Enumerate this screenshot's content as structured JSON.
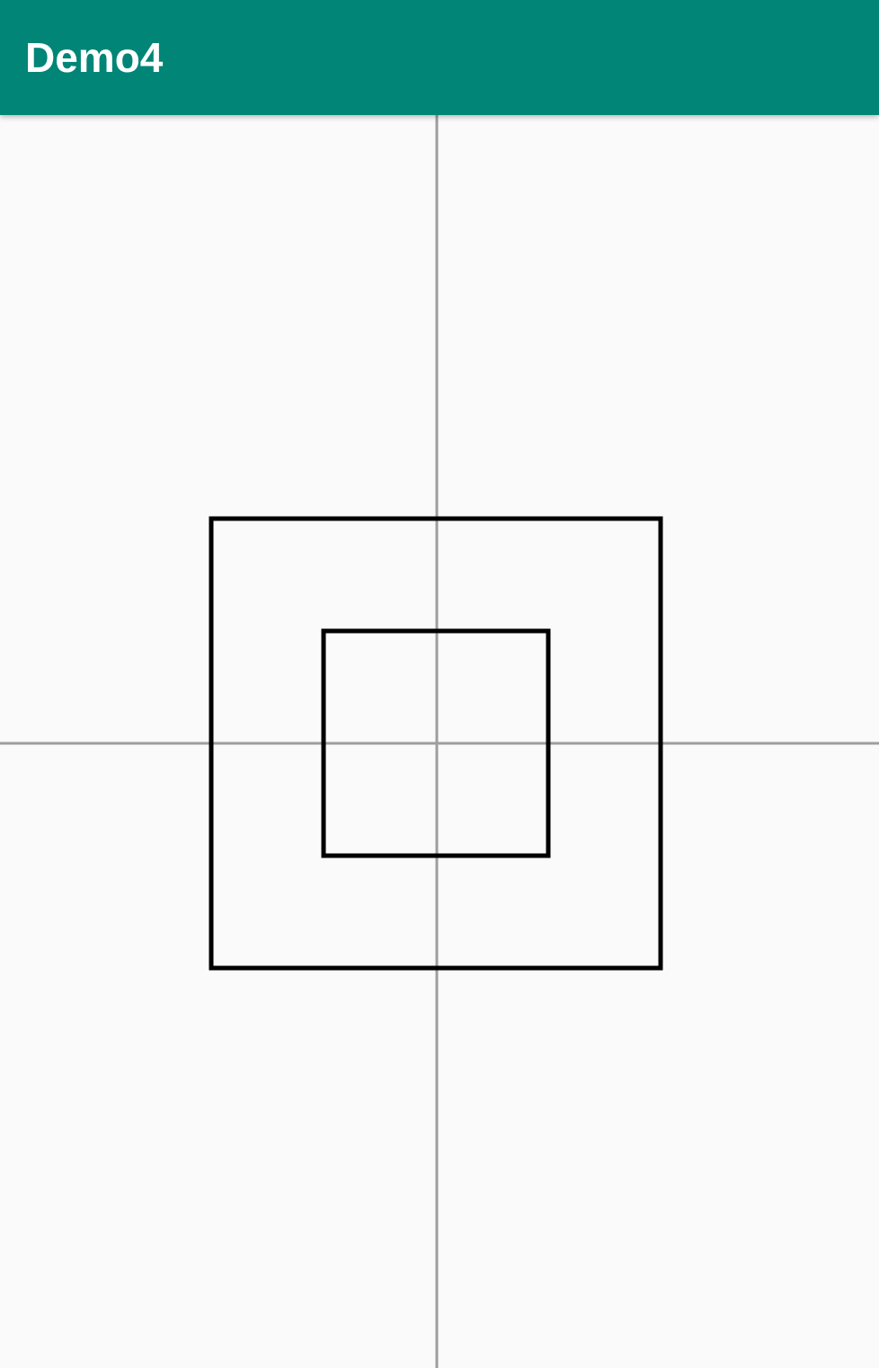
{
  "app_bar": {
    "title": "Demo4",
    "background_color": "#008577"
  },
  "canvas": {
    "background_color": "#fafafa",
    "axis_color": "#9e9e9e",
    "square_stroke_color": "#000000"
  }
}
